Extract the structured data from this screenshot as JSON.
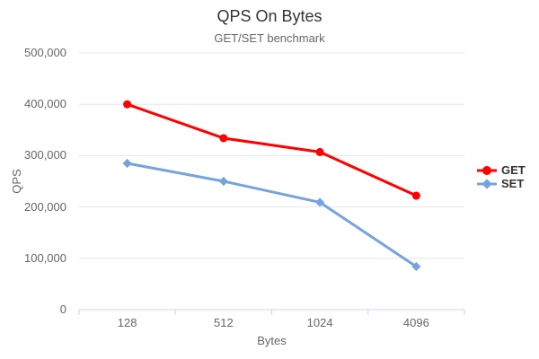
{
  "chart_data": {
    "type": "line",
    "title": "QPS On Bytes",
    "subtitle": "GET/SET benchmark",
    "xlabel": "Bytes",
    "ylabel": "QPS",
    "categories": [
      "128",
      "512",
      "1024",
      "4096"
    ],
    "series": [
      {
        "name": "GET",
        "color": "#ff0000",
        "marker": "circle",
        "values": [
          400000,
          334000,
          307000,
          222000
        ]
      },
      {
        "name": "SET",
        "color": "#74a3e0",
        "marker": "diamond",
        "values": [
          285000,
          250000,
          209000,
          84000
        ]
      }
    ],
    "ylim": [
      0,
      500000
    ],
    "ytick_interval": 100000,
    "ytick_labels": [
      "0",
      "100,000",
      "200,000",
      "300,000",
      "400,000",
      "500,000"
    ],
    "grid": true,
    "legend_position": "right"
  },
  "colors": {
    "title": "#333333",
    "subtitle": "#666666",
    "tick_labels": "#666666",
    "grid_line": "#e6e6e6",
    "axis_line": "#ccd6eb",
    "legend_text": "#333333"
  }
}
